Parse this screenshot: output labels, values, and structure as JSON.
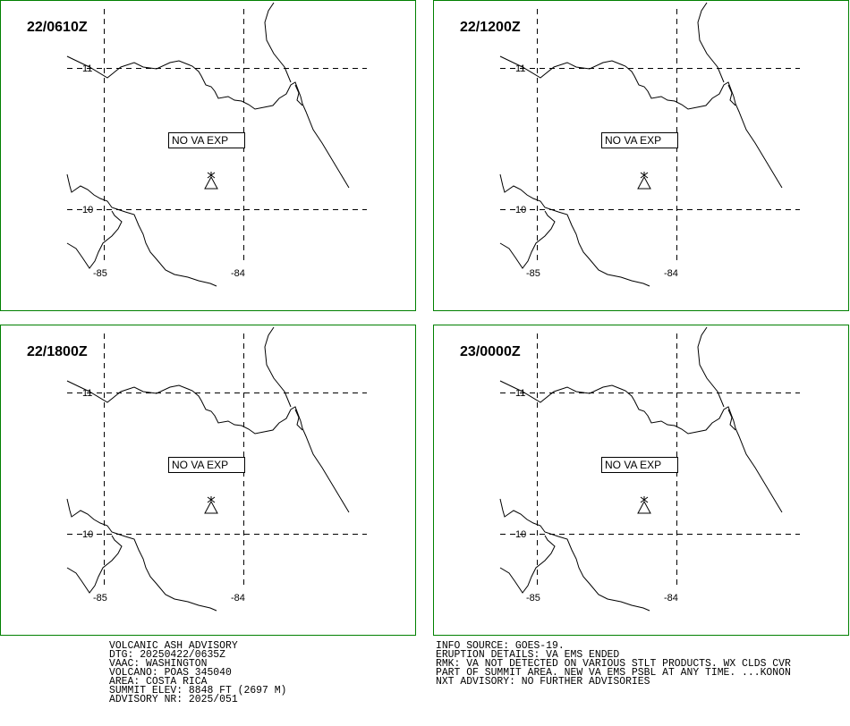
{
  "panels": [
    {
      "time": "22/0610Z",
      "box": "NO VA EXP",
      "lat_labels": [
        "11",
        "10"
      ],
      "lon_labels": [
        "-85",
        "-84"
      ]
    },
    {
      "time": "22/1200Z",
      "box": "NO VA EXP",
      "lat_labels": [
        "11",
        "10"
      ],
      "lon_labels": [
        "-85",
        "-84"
      ]
    },
    {
      "time": "22/1800Z",
      "box": "NO VA EXP",
      "lat_labels": [
        "11",
        "10"
      ],
      "lon_labels": [
        "-85",
        "-84"
      ]
    },
    {
      "time": "23/0000Z",
      "box": "NO VA EXP",
      "lat_labels": [
        "11",
        "10"
      ],
      "lon_labels": [
        "-85",
        "-84"
      ]
    }
  ],
  "advisory_left": [
    "VOLCANIC ASH ADVISORY",
    "DTG: 20250422/0635Z",
    "VAAC: WASHINGTON",
    "VOLCANO: POAS 345040",
    "AREA: COSTA RICA",
    "SUMMIT ELEV: 8848 FT (2697 M)",
    "ADVISORY NR: 2025/051"
  ],
  "advisory_right": [
    "INFO SOURCE: GOES-19.",
    "ERUPTION DETAILS: VA EMS ENDED",
    "RMK: VA NOT DETECTED ON VARIOUS STLT PRODUCTS. WX CLDS CVR",
    "PART OF SUMMIT AREA. NEW VA EMS PSBL AT ANY TIME. ...KONON",
    "NXT ADVISORY: NO FURTHER ADVISORIES"
  ]
}
